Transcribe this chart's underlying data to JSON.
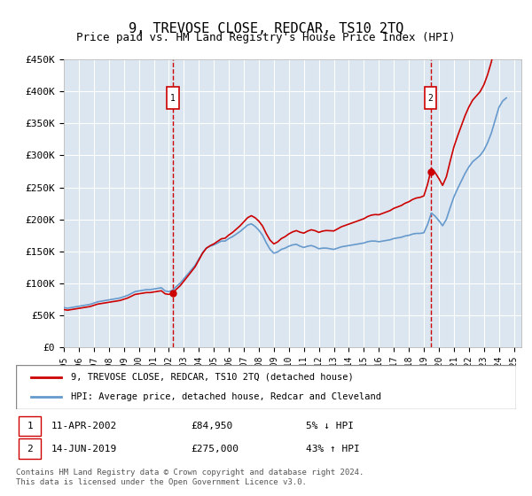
{
  "title": "9, TREVOSE CLOSE, REDCAR, TS10 2TQ",
  "subtitle": "Price paid vs. HM Land Registry's House Price Index (HPI)",
  "ylabel_ticks": [
    "£0",
    "£50K",
    "£100K",
    "£150K",
    "£200K",
    "£250K",
    "£300K",
    "£350K",
    "£400K",
    "£450K"
  ],
  "ylim": [
    0,
    450000
  ],
  "xlim_start": 1995.0,
  "xlim_end": 2025.5,
  "sale1_date": 2002.27,
  "sale1_price": 84950,
  "sale1_label": "1",
  "sale1_info": "11-APR-2002    £84,950    5% ↓ HPI",
  "sale2_date": 2019.45,
  "sale2_price": 275000,
  "sale2_label": "2",
  "sale2_info": "14-JUN-2019    £275,000    43% ↑ HPI",
  "red_line_color": "#cc0000",
  "blue_line_color": "#6699cc",
  "marker_box_color": "#cc0000",
  "dashed_line_color": "#cc0000",
  "background_color": "#dce6f0",
  "plot_bg_color": "#dce6f0",
  "legend_label_red": "9, TREVOSE CLOSE, REDCAR, TS10 2TQ (detached house)",
  "legend_label_blue": "HPI: Average price, detached house, Redcar and Cleveland",
  "footer": "Contains HM Land Registry data © Crown copyright and database right 2024.\nThis data is licensed under the Open Government Licence v3.0.",
  "hpi_years": [
    1995.0,
    1995.25,
    1995.5,
    1995.75,
    1996.0,
    1996.25,
    1996.5,
    1996.75,
    1997.0,
    1997.25,
    1997.5,
    1997.75,
    1998.0,
    1998.25,
    1998.5,
    1998.75,
    1999.0,
    1999.25,
    1999.5,
    1999.75,
    2000.0,
    2000.25,
    2000.5,
    2000.75,
    2001.0,
    2001.25,
    2001.5,
    2001.75,
    2002.0,
    2002.25,
    2002.5,
    2002.75,
    2003.0,
    2003.25,
    2003.5,
    2003.75,
    2004.0,
    2004.25,
    2004.5,
    2004.75,
    2005.0,
    2005.25,
    2005.5,
    2005.75,
    2006.0,
    2006.25,
    2006.5,
    2006.75,
    2007.0,
    2007.25,
    2007.5,
    2007.75,
    2008.0,
    2008.25,
    2008.5,
    2008.75,
    2009.0,
    2009.25,
    2009.5,
    2009.75,
    2010.0,
    2010.25,
    2010.5,
    2010.75,
    2011.0,
    2011.25,
    2011.5,
    2011.75,
    2012.0,
    2012.25,
    2012.5,
    2012.75,
    2013.0,
    2013.25,
    2013.5,
    2013.75,
    2014.0,
    2014.25,
    2014.5,
    2014.75,
    2015.0,
    2015.25,
    2015.5,
    2015.75,
    2016.0,
    2016.25,
    2016.5,
    2016.75,
    2017.0,
    2017.25,
    2017.5,
    2017.75,
    2018.0,
    2018.25,
    2018.5,
    2018.75,
    2019.0,
    2019.25,
    2019.5,
    2019.75,
    2020.0,
    2020.25,
    2020.5,
    2020.75,
    2021.0,
    2021.25,
    2021.5,
    2021.75,
    2022.0,
    2022.25,
    2022.5,
    2022.75,
    2023.0,
    2023.25,
    2023.5,
    2023.75,
    2024.0,
    2024.25,
    2024.5
  ],
  "hpi_values": [
    62000,
    61000,
    62000,
    63000,
    64000,
    65000,
    66000,
    67000,
    69000,
    71000,
    72000,
    73000,
    74000,
    75000,
    76000,
    77000,
    79000,
    81000,
    84000,
    87000,
    88000,
    89000,
    90000,
    90000,
    91000,
    92000,
    93000,
    88000,
    87000,
    89000,
    95000,
    100000,
    107000,
    114000,
    121000,
    128000,
    138000,
    148000,
    155000,
    158000,
    160000,
    163000,
    166000,
    166000,
    170000,
    173000,
    177000,
    181000,
    186000,
    191000,
    193000,
    189000,
    183000,
    175000,
    163000,
    153000,
    147000,
    149000,
    153000,
    155000,
    158000,
    160000,
    161000,
    158000,
    156000,
    158000,
    159000,
    157000,
    154000,
    155000,
    155000,
    154000,
    153000,
    155000,
    157000,
    158000,
    159000,
    160000,
    161000,
    162000,
    163000,
    165000,
    166000,
    166000,
    165000,
    166000,
    167000,
    168000,
    170000,
    171000,
    172000,
    174000,
    175000,
    177000,
    178000,
    178000,
    179000,
    192000,
    210000,
    205000,
    198000,
    190000,
    200000,
    218000,
    235000,
    248000,
    260000,
    272000,
    282000,
    290000,
    295000,
    300000,
    308000,
    320000,
    335000,
    355000,
    375000,
    385000,
    390000
  ]
}
